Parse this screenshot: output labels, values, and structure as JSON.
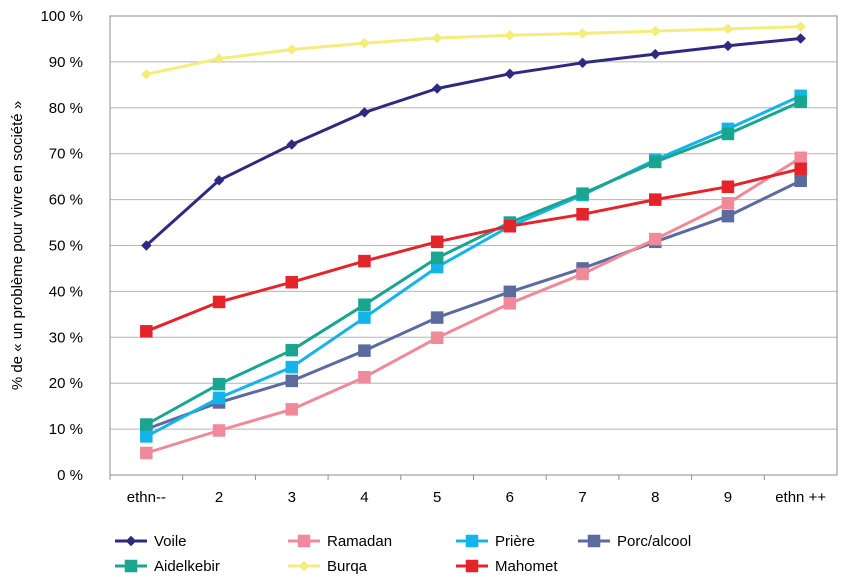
{
  "chart_data": {
    "type": "line",
    "categories": [
      "ethn--",
      "2",
      "3",
      "4",
      "5",
      "6",
      "7",
      "8",
      "9",
      "ethn ++"
    ],
    "ylabel": "% de « un problème pour vivre en société »",
    "xlabel": "",
    "title": "",
    "ylim": [
      0,
      100
    ],
    "y_ticks": [
      "0 %",
      "10 %",
      "20 %",
      "30 %",
      "40 %",
      "50 %",
      "60 %",
      "70 %",
      "80 %",
      "90 %",
      "100 %"
    ],
    "grid": "horizontal",
    "legend_placement": "bottom",
    "series": [
      {
        "name": "Voile",
        "color": "#2e2a7f",
        "marker": "diamond",
        "values": [
          50,
          64.2,
          72,
          79,
          84.2,
          87.4,
          89.8,
          91.7,
          93.5,
          95.1
        ]
      },
      {
        "name": "Ramadan",
        "color": "#f08a9a",
        "marker": "square",
        "values": [
          4.8,
          9.7,
          14.3,
          21.3,
          29.9,
          37.4,
          43.8,
          51.4,
          59.2,
          69.1
        ]
      },
      {
        "name": "Prière",
        "color": "#14b4ea",
        "marker": "square",
        "values": [
          8.4,
          16.8,
          23.5,
          34.3,
          45.3,
          54.2,
          61,
          68.7,
          75.4,
          82.6
        ]
      },
      {
        "name": "Porc/alcool",
        "color": "#5b6b9e",
        "marker": "square",
        "values": [
          10,
          15.8,
          20.5,
          27.1,
          34.3,
          39.9,
          45,
          50.8,
          56.4,
          64.1
        ]
      },
      {
        "name": "Aidelkebir",
        "color": "#1aa590",
        "marker": "square",
        "values": [
          11,
          19.8,
          27.2,
          37.1,
          47.3,
          55,
          61.3,
          68.2,
          74.3,
          81.3
        ]
      },
      {
        "name": "Burqa",
        "color": "#f5ec7a",
        "marker": "diamond",
        "values": [
          87.3,
          90.7,
          92.7,
          94.1,
          95.2,
          95.8,
          96.2,
          96.7,
          97.2,
          97.7
        ]
      },
      {
        "name": "Mahomet",
        "color": "#e3242b",
        "marker": "square",
        "values": [
          31.3,
          37.7,
          42,
          46.6,
          50.8,
          54.2,
          56.8,
          60,
          62.8,
          66.7
        ]
      }
    ]
  }
}
